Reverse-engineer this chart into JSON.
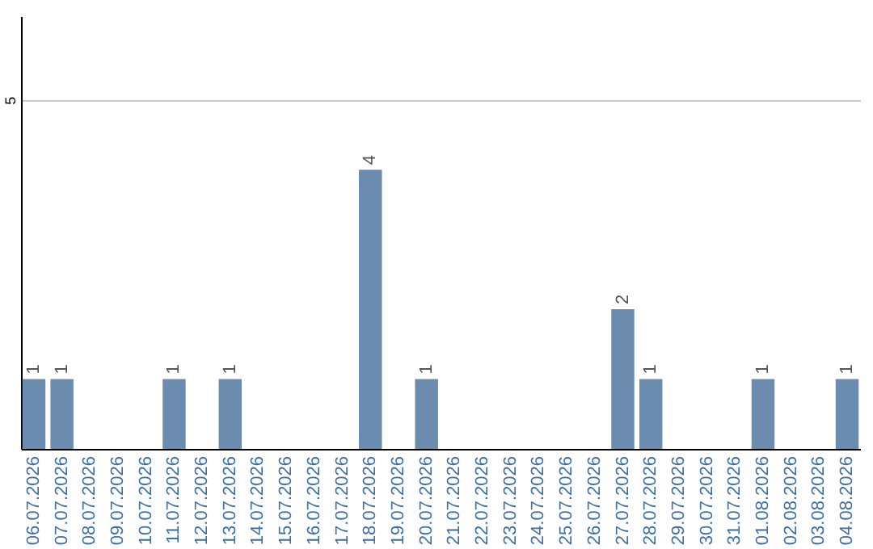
{
  "chart_data": {
    "type": "bar",
    "categories": [
      "06.07.2026",
      "07.07.2026",
      "08.07.2026",
      "09.07.2026",
      "10.07.2026",
      "11.07.2026",
      "12.07.2026",
      "13.07.2026",
      "14.07.2026",
      "15.07.2026",
      "16.07.2026",
      "17.07.2026",
      "18.07.2026",
      "19.07.2026",
      "20.07.2026",
      "21.07.2026",
      "22.07.2026",
      "23.07.2026",
      "24.07.2026",
      "25.07.2026",
      "26.07.2026",
      "27.07.2026",
      "28.07.2026",
      "29.07.2026",
      "30.07.2026",
      "31.07.2026",
      "01.08.2026",
      "02.08.2026",
      "03.08.2026",
      "04.08.2026"
    ],
    "values": [
      1,
      1,
      0,
      0,
      0,
      1,
      0,
      1,
      0,
      0,
      0,
      0,
      4,
      0,
      1,
      0,
      0,
      0,
      0,
      0,
      0,
      2,
      1,
      0,
      0,
      0,
      1,
      0,
      0,
      1
    ],
    "value_labels": [
      "1",
      "1",
      null,
      null,
      null,
      "1",
      null,
      "1",
      null,
      null,
      null,
      null,
      "4",
      null,
      "1",
      null,
      null,
      null,
      null,
      null,
      null,
      "2",
      "1",
      null,
      null,
      null,
      "1",
      null,
      null,
      "1"
    ],
    "color": "#6b8cae",
    "ylim": [
      0,
      6.2
    ],
    "yticks": [
      5
    ],
    "grid": "y"
  }
}
